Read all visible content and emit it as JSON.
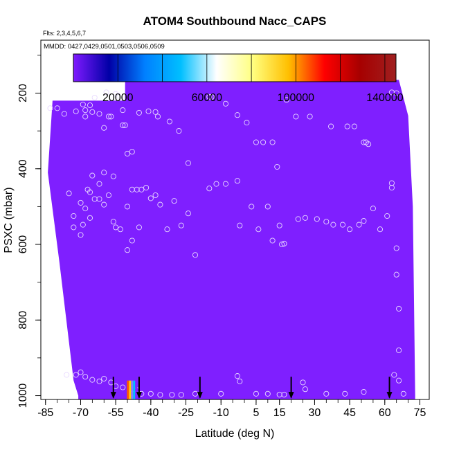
{
  "chart_data": {
    "type": "heatmap",
    "title": "ATOM4 Southbound Nacc_CAPS",
    "subtitle_flights": "Flts: 2,3,4,5,6,7",
    "subtitle_dates": "MMDD: 0427,0429,0501,0503,0506,0509",
    "xlabel": "Latitude (deg N)",
    "ylabel": "PSXC (mbar)",
    "xlim": [
      -87,
      79
    ],
    "ylim": [
      1010,
      60
    ],
    "y_reversed": true,
    "x_ticks": [
      -85,
      -70,
      -55,
      -40,
      -25,
      -10,
      5,
      15,
      30,
      45,
      60,
      75
    ],
    "y_ticks": [
      200,
      400,
      600,
      800,
      1000
    ],
    "colorbar": {
      "min": 0,
      "max": 145000,
      "tick_values": [
        20000,
        60000,
        100000,
        140000
      ],
      "tick_labels": [
        "20000",
        "60000",
        "100000",
        "140000"
      ],
      "stops": [
        "#7f1aff",
        "#0000a6",
        "#0080ff",
        "#00bfff",
        "#ffffff",
        "#ffff80",
        "#ffbf00",
        "#ff0000",
        "#a60000",
        "#a02020"
      ]
    },
    "field_color": "#7f1fff",
    "field_value_approx": 1000,
    "field_region": {
      "left_edge": [
        [
          -82,
          220
        ],
        [
          -84,
          410
        ],
        [
          -79,
          650
        ],
        [
          -73,
          960
        ],
        [
          -71,
          1000
        ]
      ],
      "right_edge": [
        [
          66,
          165
        ],
        [
          70,
          260
        ],
        [
          72,
          500
        ],
        [
          73,
          1000
        ]
      ],
      "top_edge": [
        [
          -82,
          220
        ],
        [
          -51,
          220
        ],
        [
          -51,
          165
        ],
        [
          66,
          165
        ]
      ]
    },
    "samples_marker": "open-circle",
    "samples": [
      [
        -83,
        240
      ],
      [
        -80,
        240
      ],
      [
        -77,
        255
      ],
      [
        -72,
        248
      ],
      [
        -69,
        230
      ],
      [
        -68,
        245
      ],
      [
        -68,
        262
      ],
      [
        -66,
        232
      ],
      [
        -65,
        250
      ],
      [
        -64,
        212
      ],
      [
        -62,
        255
      ],
      [
        -60,
        292
      ],
      [
        -59,
        198
      ],
      [
        -58,
        262
      ],
      [
        -57,
        262
      ],
      [
        -55,
        202
      ],
      [
        -54,
        207
      ],
      [
        -52,
        245
      ],
      [
        -52,
        285
      ],
      [
        -51,
        285
      ],
      [
        -50,
        360
      ],
      [
        -48,
        355
      ],
      [
        -45,
        252
      ],
      [
        -41,
        248
      ],
      [
        -38,
        250
      ],
      [
        -37,
        262
      ],
      [
        -32,
        275
      ],
      [
        -28,
        300
      ],
      [
        -24,
        385
      ],
      [
        -15,
        210
      ],
      [
        -14,
        210
      ],
      [
        -8,
        228
      ],
      [
        -3,
        258
      ],
      [
        1,
        278
      ],
      [
        5,
        330
      ],
      [
        8,
        330
      ],
      [
        12,
        330
      ],
      [
        14,
        395
      ],
      [
        18,
        218
      ],
      [
        22,
        262
      ],
      [
        28,
        262
      ],
      [
        37,
        288
      ],
      [
        44,
        288
      ],
      [
        47,
        288
      ],
      [
        51,
        330
      ],
      [
        52,
        330
      ],
      [
        53,
        335
      ],
      [
        63,
        198
      ],
      [
        65,
        200
      ],
      [
        -60,
        410
      ],
      [
        -56,
        420
      ],
      [
        -62,
        440
      ],
      [
        -65,
        418
      ],
      [
        -67,
        455
      ],
      [
        -66,
        462
      ],
      [
        -68,
        505
      ],
      [
        -70,
        490
      ],
      [
        -75,
        465
      ],
      [
        -73,
        525
      ],
      [
        -69,
        548
      ],
      [
        -66,
        530
      ],
      [
        -64,
        480
      ],
      [
        -62,
        480
      ],
      [
        -60,
        495
      ],
      [
        -58,
        470
      ],
      [
        -56,
        540
      ],
      [
        -53,
        560
      ],
      [
        -50,
        500
      ],
      [
        -48,
        455
      ],
      [
        -46,
        455
      ],
      [
        -44,
        455
      ],
      [
        -42,
        450
      ],
      [
        -40,
        478
      ],
      [
        -38,
        470
      ],
      [
        -36,
        495
      ],
      [
        -33,
        560
      ],
      [
        -30,
        485
      ],
      [
        -27,
        550
      ],
      [
        -24,
        518
      ],
      [
        -21,
        628
      ],
      [
        -15,
        452
      ],
      [
        -12,
        440
      ],
      [
        -8,
        440
      ],
      [
        -3,
        432
      ],
      [
        -2,
        550
      ],
      [
        3,
        500
      ],
      [
        6,
        560
      ],
      [
        10,
        500
      ],
      [
        12,
        590
      ],
      [
        15,
        550
      ],
      [
        16,
        600
      ],
      [
        17,
        598
      ],
      [
        23,
        533
      ],
      [
        26,
        530
      ],
      [
        31,
        533
      ],
      [
        35,
        540
      ],
      [
        38,
        548
      ],
      [
        42,
        548
      ],
      [
        45,
        560
      ],
      [
        49,
        548
      ],
      [
        51,
        538
      ],
      [
        55,
        505
      ],
      [
        58,
        560
      ],
      [
        61,
        525
      ],
      [
        63,
        438
      ],
      [
        63,
        450
      ],
      [
        65,
        610
      ],
      [
        65,
        680
      ],
      [
        66,
        770
      ],
      [
        66,
        880
      ],
      [
        -45,
        555
      ],
      [
        -48,
        590
      ],
      [
        -50,
        615
      ],
      [
        -55,
        555
      ],
      [
        -70,
        575
      ],
      [
        -73,
        555
      ],
      [
        -76,
        945
      ],
      [
        -72,
        945
      ],
      [
        -70,
        938
      ],
      [
        -68,
        950
      ],
      [
        -65,
        958
      ],
      [
        -62,
        962
      ],
      [
        -60,
        955
      ],
      [
        -57,
        965
      ],
      [
        -55,
        975
      ],
      [
        -52,
        978
      ],
      [
        -48,
        995
      ],
      [
        -46,
        985
      ],
      [
        -44,
        995
      ],
      [
        -40,
        995
      ],
      [
        -36,
        998
      ],
      [
        -31,
        998
      ],
      [
        -27,
        998
      ],
      [
        -21,
        995
      ],
      [
        -10,
        995
      ],
      [
        -3,
        948
      ],
      [
        -2,
        962
      ],
      [
        5,
        995
      ],
      [
        10,
        995
      ],
      [
        15,
        997
      ],
      [
        17,
        997
      ],
      [
        25,
        965
      ],
      [
        26,
        983
      ],
      [
        35,
        995
      ],
      [
        43,
        995
      ],
      [
        51,
        990
      ],
      [
        64,
        945
      ],
      [
        66,
        960
      ],
      [
        68,
        995
      ]
    ],
    "arrows_x": [
      -56,
      -45,
      -19,
      20,
      62
    ],
    "bottom_bar": {
      "x_center": -48,
      "colors": [
        "#ff5a00",
        "#ffd000",
        "#8080ff",
        "#00c0ff",
        "#7f1fff"
      ]
    }
  }
}
